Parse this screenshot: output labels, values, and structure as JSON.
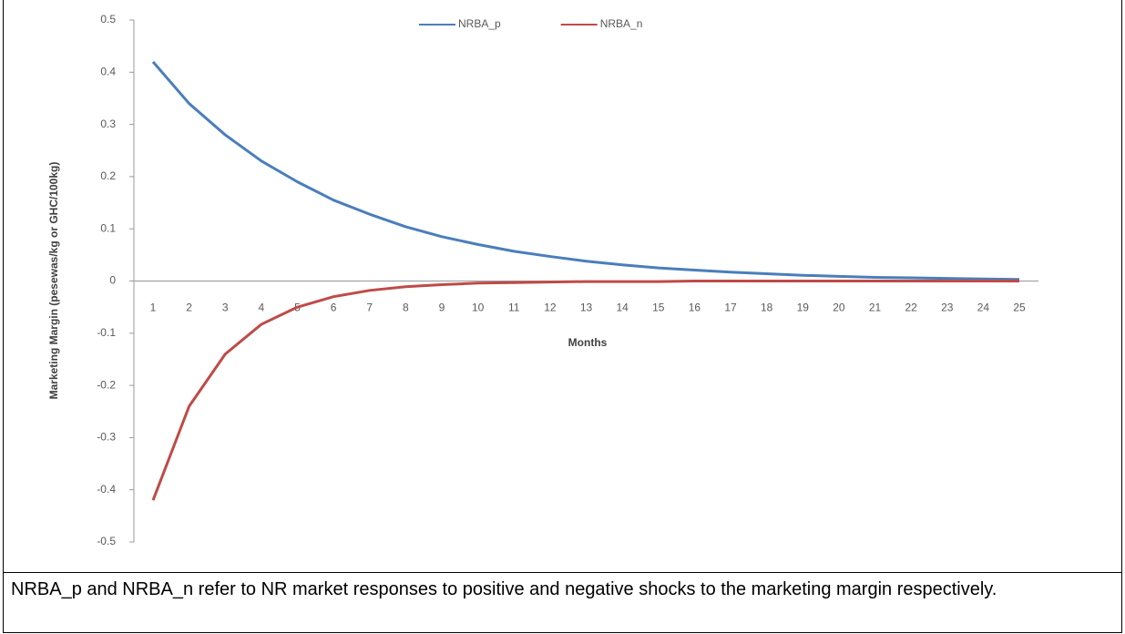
{
  "chart_data": {
    "type": "line",
    "y_label": "Marketing Margin (pesewas/kg or GHC/100kg)",
    "x_label": "Months",
    "categories": [
      1,
      2,
      3,
      4,
      5,
      6,
      7,
      8,
      9,
      10,
      11,
      12,
      13,
      14,
      15,
      16,
      17,
      18,
      19,
      20,
      21,
      22,
      23,
      24,
      25
    ],
    "series": [
      {
        "name": "NRBA_p",
        "color": "#4a7ebb",
        "values": [
          0.42,
          0.34,
          0.28,
          0.23,
          0.19,
          0.155,
          0.128,
          0.104,
          0.085,
          0.07,
          0.057,
          0.047,
          0.038,
          0.031,
          0.025,
          0.021,
          0.017,
          0.014,
          0.011,
          0.009,
          0.007,
          0.006,
          0.005,
          0.004,
          0.003
        ]
      },
      {
        "name": "NRBA_n",
        "color": "#be4b48",
        "values": [
          -0.42,
          -0.24,
          -0.14,
          -0.083,
          -0.05,
          -0.03,
          -0.018,
          -0.011,
          -0.007,
          -0.004,
          -0.003,
          -0.002,
          -0.001,
          -0.001,
          -0.001,
          0,
          0,
          0,
          0,
          0,
          0,
          0,
          0,
          0,
          0
        ]
      }
    ],
    "ylim": [
      -0.5,
      0.5
    ],
    "yticks": [
      -0.5,
      -0.4,
      -0.3,
      -0.2,
      -0.1,
      0,
      0.1,
      0.2,
      0.3,
      0.4,
      0.5
    ],
    "legend": "top"
  },
  "caption": "NRBA_p and NRBA_n refer to NR market responses to positive and negative shocks to the marketing margin respectively."
}
